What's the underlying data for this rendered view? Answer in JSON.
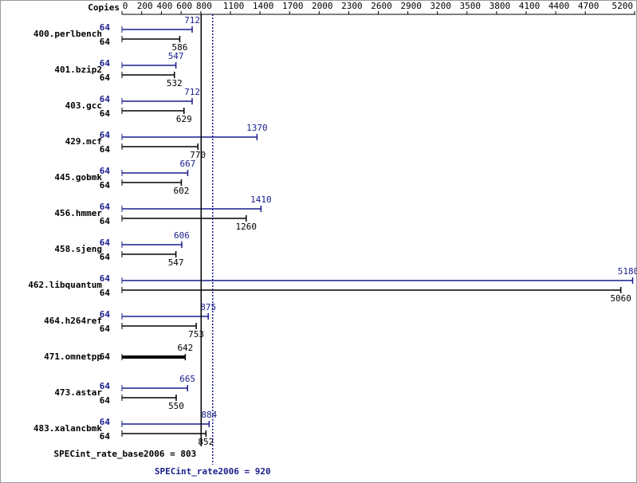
{
  "chart_data": {
    "type": "bar",
    "orientation": "horizontal",
    "copies_label": "Copies",
    "categories": [
      "400.perlbench",
      "401.bzip2",
      "403.gcc",
      "429.mcf",
      "445.gobmk",
      "456.hmmer",
      "458.sjeng",
      "462.libquantum",
      "464.h264ref",
      "471.omnetpp",
      "473.astar",
      "483.xalancbmk"
    ],
    "series": [
      {
        "color": "#191d8c",
        "copies": [
          64,
          64,
          64,
          64,
          64,
          64,
          64,
          64,
          64,
          null,
          64,
          64
        ],
        "values": [
          712,
          547,
          712,
          1370,
          667,
          1410,
          606,
          5180,
          875,
          null,
          665,
          884
        ]
      },
      {
        "color": "#000000",
        "copies": [
          64,
          64,
          64,
          64,
          64,
          64,
          64,
          64,
          64,
          64,
          64,
          64
        ],
        "values": [
          586,
          532,
          629,
          770,
          602,
          1260,
          547,
          5060,
          753,
          642,
          550,
          852
        ]
      }
    ],
    "xlim": [
      0,
      5200
    ],
    "xticks": [
      0,
      200,
      400,
      600,
      800,
      1100,
      1400,
      1700,
      2000,
      2300,
      2600,
      2900,
      3200,
      3500,
      3800,
      4100,
      4400,
      4700,
      5200
    ],
    "reference_lines": [
      {
        "label": "SPECint_rate_base2006 = 803",
        "value": 803,
        "color": "#000000",
        "dashed": false
      },
      {
        "label": "SPECint_rate2006 = 920",
        "value": 920,
        "color": "#191d8c",
        "dashed": true
      }
    ]
  }
}
